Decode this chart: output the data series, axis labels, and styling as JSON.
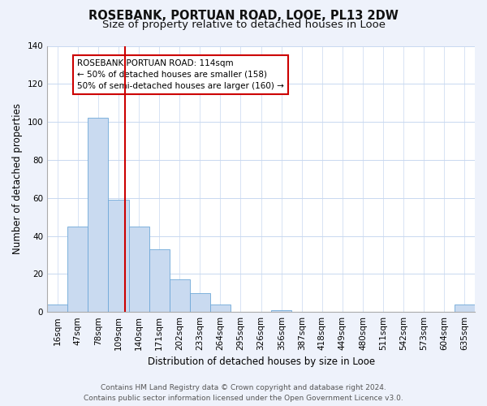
{
  "title": "ROSEBANK, PORTUAN ROAD, LOOE, PL13 2DW",
  "subtitle": "Size of property relative to detached houses in Looe",
  "xlabel": "Distribution of detached houses by size in Looe",
  "ylabel": "Number of detached properties",
  "bin_labels": [
    "16sqm",
    "47sqm",
    "78sqm",
    "109sqm",
    "140sqm",
    "171sqm",
    "202sqm",
    "233sqm",
    "264sqm",
    "295sqm",
    "326sqm",
    "356sqm",
    "387sqm",
    "418sqm",
    "449sqm",
    "480sqm",
    "511sqm",
    "542sqm",
    "573sqm",
    "604sqm",
    "635sqm"
  ],
  "bar_values": [
    4,
    45,
    102,
    59,
    45,
    33,
    17,
    10,
    4,
    0,
    0,
    1,
    0,
    0,
    0,
    0,
    0,
    0,
    0,
    0,
    4
  ],
  "bar_color": "#c9daf0",
  "bar_edge_color": "#6fa8d8",
  "vline_color": "#cc0000",
  "vline_pos": 3.33,
  "annotation_title": "ROSEBANK PORTUAN ROAD: 114sqm",
  "annotation_line1": "← 50% of detached houses are smaller (158)",
  "annotation_line2": "50% of semi-detached houses are larger (160) →",
  "annotation_box_color": "#ffffff",
  "annotation_box_edge_color": "#cc0000",
  "ylim": [
    0,
    140
  ],
  "yticks": [
    0,
    20,
    40,
    60,
    80,
    100,
    120,
    140
  ],
  "footer_line1": "Contains HM Land Registry data © Crown copyright and database right 2024.",
  "footer_line2": "Contains public sector information licensed under the Open Government Licence v3.0.",
  "background_color": "#eef2fb",
  "plot_background_color": "#ffffff",
  "title_fontsize": 10.5,
  "subtitle_fontsize": 9.5,
  "axis_label_fontsize": 8.5,
  "tick_fontsize": 7.5,
  "footer_fontsize": 6.5,
  "annotation_fontsize": 7.5,
  "annotation_title_fontsize": 8,
  "grid_color": "#c8d8f0",
  "spine_color": "#aaaaaa"
}
